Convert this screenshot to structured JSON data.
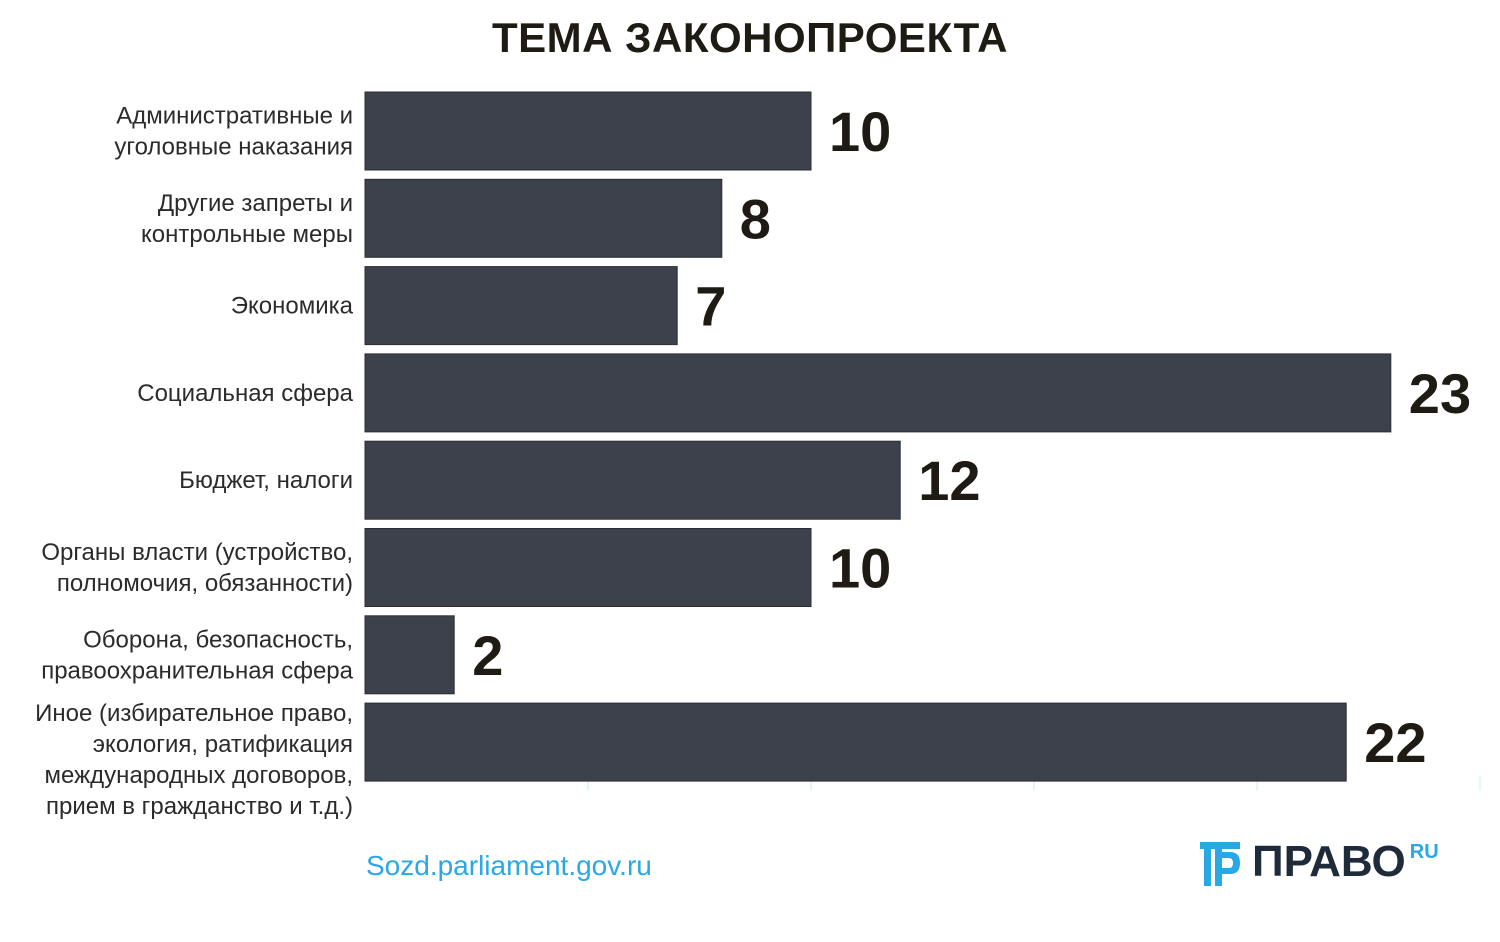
{
  "chart_data": {
    "type": "bar",
    "orientation": "horizontal",
    "title": "ТЕМА ЗАКОНОПРОЕКТА",
    "categories": [
      [
        "Административные и",
        "уголовные наказания"
      ],
      [
        "Другие запреты и",
        "контрольные меры"
      ],
      [
        "Экономика"
      ],
      [
        "Социальная сфера"
      ],
      [
        "Бюджет, налоги"
      ],
      [
        "Органы власти (устройство,",
        "полномочия, обязанности)"
      ],
      [
        "Оборона, безопасность,",
        "правоохранительная сфера"
      ],
      [
        "Иное (избирательное право,",
        "экология, ратификация",
        "международных договоров,",
        "прием в гражданство и т.д.)"
      ]
    ],
    "values": [
      10,
      8,
      7,
      23,
      12,
      10,
      2,
      22
    ],
    "xlim": [
      0,
      25
    ],
    "bar_color": "#3d414b",
    "grid": false
  },
  "footer": {
    "source": "Sozd.parliament.gov.ru",
    "logo_text": "ПРАВО",
    "logo_sup": "RU",
    "logo_icon": "pravo-logo-icon",
    "source_color": "#2aa8e6"
  }
}
